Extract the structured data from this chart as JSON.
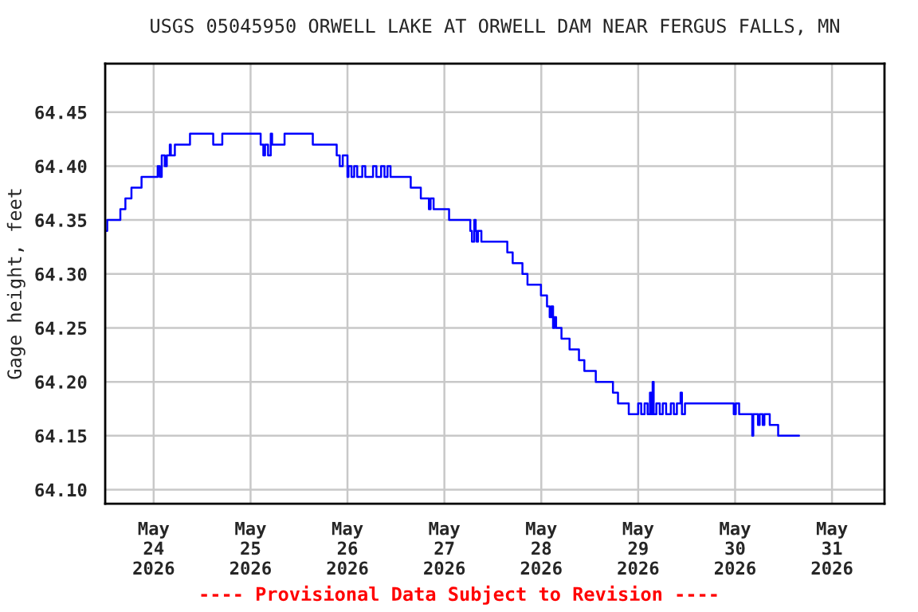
{
  "chart_data": {
    "type": "step",
    "title": "USGS 05045950 ORWELL LAKE AT ORWELL DAM NEAR FERGUS FALLS, MN",
    "ylabel": "Gage height, feet",
    "annotations": [
      "---- Provisional Data Subject to Revision ----"
    ],
    "x": [
      "2026-05-23T12:15",
      "2026-05-23T12:30",
      "2026-05-23T15:45",
      "2026-05-23T17:00",
      "2026-05-23T18:30",
      "2026-05-23T21:00",
      "2026-05-24T01:00",
      "2026-05-24T01:30",
      "2026-05-24T02:00",
      "2026-05-24T02:45",
      "2026-05-24T03:15",
      "2026-05-24T04:00",
      "2026-05-24T04:15",
      "2026-05-24T05:15",
      "2026-05-24T09:00",
      "2026-05-24T14:45",
      "2026-05-24T17:00",
      "2026-05-25T02:30",
      "2026-05-25T03:10",
      "2026-05-25T03:35",
      "2026-05-25T04:20",
      "2026-05-25T05:00",
      "2026-05-25T05:20",
      "2026-05-25T08:25",
      "2026-05-25T15:25",
      "2026-05-25T21:20",
      "2026-05-25T22:05",
      "2026-05-25T22:50",
      "2026-05-26T00:00",
      "2026-05-26T00:15",
      "2026-05-26T01:00",
      "2026-05-26T01:40",
      "2026-05-26T02:25",
      "2026-05-26T03:40",
      "2026-05-26T04:25",
      "2026-05-26T06:20",
      "2026-05-26T07:10",
      "2026-05-26T08:20",
      "2026-05-26T09:10",
      "2026-05-26T09:55",
      "2026-05-26T10:40",
      "2026-05-26T15:40",
      "2026-05-26T18:10",
      "2026-05-26T20:10",
      "2026-05-26T20:35",
      "2026-05-26T21:20",
      "2026-05-26T22:55",
      "2026-05-27T01:10",
      "2026-05-27T06:25",
      "2026-05-27T06:50",
      "2026-05-27T07:25",
      "2026-05-27T07:45",
      "2026-05-27T08:00",
      "2026-05-27T08:20",
      "2026-05-27T09:10",
      "2026-05-27T15:35",
      "2026-05-27T16:55",
      "2026-05-27T19:20",
      "2026-05-27T20:35",
      "2026-05-27T23:55",
      "2026-05-28T01:25",
      "2026-05-28T02:05",
      "2026-05-28T02:30",
      "2026-05-28T02:55",
      "2026-05-28T03:15",
      "2026-05-28T03:40",
      "2026-05-28T05:00",
      "2026-05-28T07:00",
      "2026-05-28T09:20",
      "2026-05-28T10:40",
      "2026-05-28T13:30",
      "2026-05-28T17:45",
      "2026-05-28T19:00",
      "2026-05-28T21:40",
      "2026-05-29T00:00",
      "2026-05-29T00:45",
      "2026-05-29T01:35",
      "2026-05-29T02:20",
      "2026-05-29T02:55",
      "2026-05-29T03:15",
      "2026-05-29T03:35",
      "2026-05-29T03:50",
      "2026-05-29T04:30",
      "2026-05-29T05:20",
      "2026-05-29T06:05",
      "2026-05-29T06:55",
      "2026-05-29T08:05",
      "2026-05-29T08:50",
      "2026-05-29T09:35",
      "2026-05-29T10:30",
      "2026-05-29T10:50",
      "2026-05-29T11:35",
      "2026-05-29T23:40",
      "2026-05-30T00:10",
      "2026-05-30T01:00",
      "2026-05-30T04:15",
      "2026-05-30T04:30",
      "2026-05-30T05:40",
      "2026-05-30T06:05",
      "2026-05-30T06:50",
      "2026-05-30T07:15",
      "2026-05-30T08:35",
      "2026-05-30T10:40",
      "2026-05-30T15:50"
    ],
    "series": [
      {
        "color": "#0000ff",
        "values": [
          64.34,
          64.35,
          64.36,
          64.37,
          64.38,
          64.39,
          64.4,
          64.39,
          64.41,
          64.4,
          64.41,
          64.42,
          64.41,
          64.42,
          64.43,
          64.42,
          64.43,
          64.42,
          64.41,
          64.42,
          64.41,
          64.43,
          64.42,
          64.43,
          64.42,
          64.41,
          64.4,
          64.41,
          64.39,
          64.4,
          64.39,
          64.4,
          64.39,
          64.4,
          64.39,
          64.4,
          64.39,
          64.4,
          64.39,
          64.4,
          64.39,
          64.38,
          64.37,
          64.36,
          64.37,
          64.36,
          64.36,
          64.35,
          64.34,
          64.33,
          64.35,
          64.34,
          64.33,
          64.34,
          64.33,
          64.32,
          64.31,
          64.3,
          64.29,
          64.28,
          64.27,
          64.26,
          64.27,
          64.25,
          64.26,
          64.25,
          64.24,
          64.23,
          64.22,
          64.21,
          64.2,
          64.19,
          64.18,
          64.17,
          64.18,
          64.17,
          64.18,
          64.17,
          64.19,
          64.17,
          64.2,
          64.17,
          64.18,
          64.17,
          64.18,
          64.17,
          64.18,
          64.17,
          64.18,
          64.19,
          64.17,
          64.18,
          64.17,
          64.18,
          64.17,
          64.15,
          64.17,
          64.16,
          64.17,
          64.16,
          64.17,
          64.16,
          64.15,
          64.15
        ]
      }
    ],
    "xlim": [
      "2026-05-23T12:00",
      "2026-05-31T13:00"
    ],
    "xticks": [
      {
        "value": "2026-05-24",
        "label": "May\n24\n2026"
      },
      {
        "value": "2026-05-25",
        "label": "May\n25\n2026"
      },
      {
        "value": "2026-05-26",
        "label": "May\n26\n2026"
      },
      {
        "value": "2026-05-27",
        "label": "May\n27\n2026"
      },
      {
        "value": "2026-05-28",
        "label": "May\n28\n2026"
      },
      {
        "value": "2026-05-29",
        "label": "May\n29\n2026"
      },
      {
        "value": "2026-05-30",
        "label": "May\n30\n2026"
      },
      {
        "value": "2026-05-31",
        "label": "May\n31\n2026"
      }
    ],
    "ylim": [
      64.087,
      64.495
    ],
    "yticks": [
      {
        "value": 64.1,
        "label": "64.10"
      },
      {
        "value": 64.15,
        "label": "64.15"
      },
      {
        "value": 64.2,
        "label": "64.20"
      },
      {
        "value": 64.25,
        "label": "64.25"
      },
      {
        "value": 64.3,
        "label": "64.30"
      },
      {
        "value": 64.35,
        "label": "64.35"
      },
      {
        "value": 64.4,
        "label": "64.40"
      },
      {
        "value": 64.45,
        "label": "64.45"
      }
    ],
    "grid": true
  }
}
